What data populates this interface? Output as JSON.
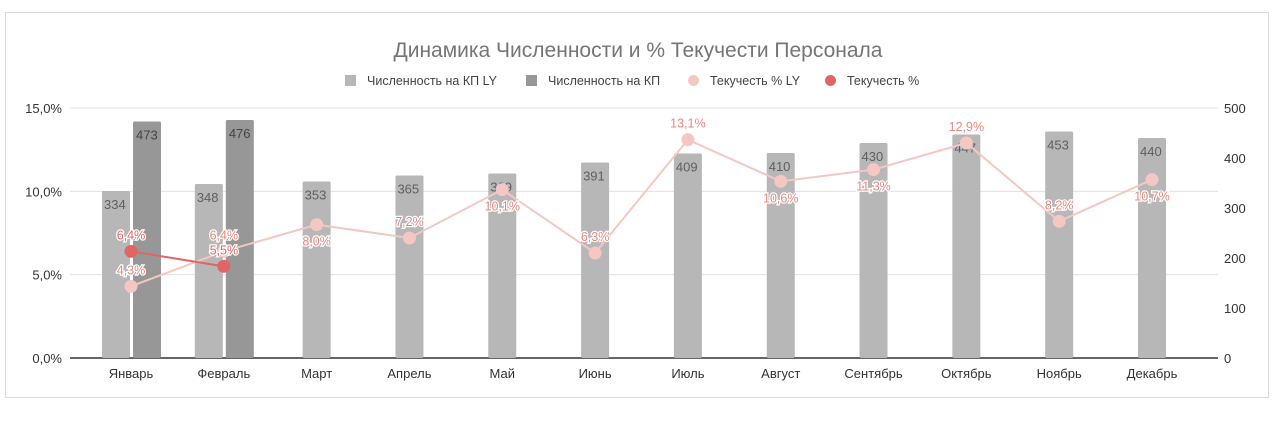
{
  "chart_data": {
    "type": "bar+line",
    "title": "Динамика Численности и % Текучести Персонала",
    "legend_position": "top",
    "grid": true,
    "categories": [
      "Январь",
      "Февраль",
      "Март",
      "Апрель",
      "Май",
      "Июнь",
      "Июль",
      "Август",
      "Сентябрь",
      "Октябрь",
      "Ноябрь",
      "Декабрь"
    ],
    "left_axis": {
      "ylim": [
        0,
        15
      ],
      "ticks": [
        "0,0%",
        "5,0%",
        "10,0%",
        "15,0%"
      ],
      "tick_values": [
        0,
        5,
        10,
        15
      ]
    },
    "right_axis": {
      "ylim": [
        0,
        500
      ],
      "ticks": [
        "0",
        "100",
        "200",
        "300",
        "400",
        "500"
      ],
      "tick_values": [
        0,
        100,
        200,
        300,
        400,
        500
      ]
    },
    "series": [
      {
        "name": "Численность на КП LY",
        "kind": "bar",
        "axis": "right",
        "color": "#b7b7b7",
        "values": [
          334,
          348,
          353,
          365,
          369,
          391,
          409,
          410,
          430,
          447,
          453,
          440
        ]
      },
      {
        "name": "Численность на КП",
        "kind": "bar",
        "axis": "right",
        "color": "#979797",
        "values": [
          473,
          476,
          null,
          null,
          null,
          null,
          null,
          null,
          null,
          null,
          null,
          null
        ]
      },
      {
        "name": "Текучесть % LY",
        "kind": "line",
        "axis": "left",
        "color": "#f4c7c3",
        "values": [
          4.3,
          6.4,
          8.0,
          7.2,
          10.1,
          6.3,
          13.1,
          10.6,
          11.3,
          12.9,
          8.2,
          10.7
        ],
        "labels": [
          "4,3%",
          "6,4%",
          "8,0%",
          "7,2%",
          "10,1%",
          "6,3%",
          "13,1%",
          "10,6%",
          "11,3%",
          "12,9%",
          "8,2%",
          "10,7%"
        ]
      },
      {
        "name": "Текучесть %",
        "kind": "line",
        "axis": "left",
        "color": "#e06666",
        "values": [
          6.4,
          5.5,
          null,
          null,
          null,
          null,
          null,
          null,
          null,
          null,
          null,
          null
        ],
        "labels": [
          "6,4%",
          "5,5%"
        ]
      }
    ]
  }
}
